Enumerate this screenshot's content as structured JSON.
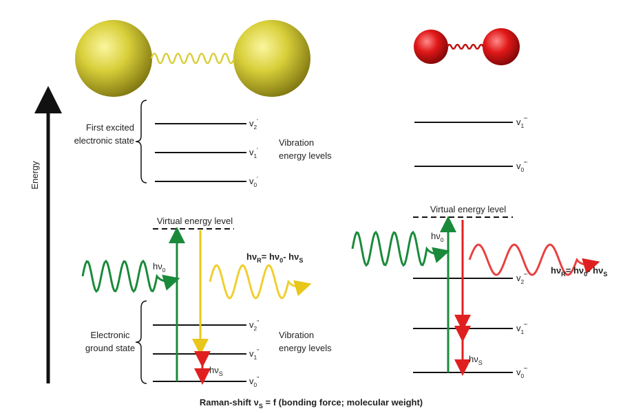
{
  "axis_label": "Energy",
  "left": {
    "excited_state": [
      "First excited",
      "electronic state"
    ],
    "excited_levels": [
      {
        "text": "v",
        "sub": "2",
        "sup": "'"
      },
      {
        "text": "v",
        "sub": "1",
        "sup": "'"
      },
      {
        "text": "v",
        "sub": "0",
        "sup": "'"
      }
    ],
    "vibration_label_top": [
      "Vibration",
      "energy levels"
    ],
    "virtual_level": "Virtual energy level",
    "incident": [
      {
        "text": "hν",
        "sub": "0"
      }
    ],
    "raman_formula": [
      {
        "text": "hν",
        "sub": "R"
      },
      {
        "text": "= hν",
        "sub": "0"
      },
      {
        "text": "- hν",
        "sub": "S"
      }
    ],
    "ground_state": [
      "Electronic",
      "ground state"
    ],
    "ground_levels": [
      {
        "text": "v",
        "sub": "2",
        "sup": "''"
      },
      {
        "text": "v",
        "sub": "1",
        "sup": "''"
      },
      {
        "text": "v",
        "sub": "0",
        "sup": "''"
      }
    ],
    "vibration_label_bottom": [
      "Vibration",
      "energy levels"
    ],
    "shift": [
      {
        "text": "hν",
        "sub": "S"
      }
    ]
  },
  "right": {
    "excited_levels": [
      {
        "text": "v",
        "sub": "1",
        "sup": "'''"
      },
      {
        "text": "v",
        "sub": "0",
        "sup": "'''"
      }
    ],
    "virtual_level": "Virtual energy level",
    "incident": [
      {
        "text": "hν",
        "sub": "0"
      }
    ],
    "raman_formula": [
      {
        "text": "hν",
        "sub": "R"
      },
      {
        "text": "= hν",
        "sub": "0"
      },
      {
        "text": "- hν",
        "sub": "S"
      }
    ],
    "ground_levels": [
      {
        "text": "v",
        "sub": "2",
        "sup": "'''"
      },
      {
        "text": "v",
        "sub": "1",
        "sup": "'''"
      },
      {
        "text": "v",
        "sub": "0",
        "sup": "'''"
      }
    ],
    "shift": [
      {
        "text": "hν",
        "sub": "S"
      }
    ]
  },
  "footer": [
    {
      "text": "Raman-shift ν",
      "sub": "S"
    },
    {
      "text": " = f (bonding force; molecular weight)"
    }
  ]
}
